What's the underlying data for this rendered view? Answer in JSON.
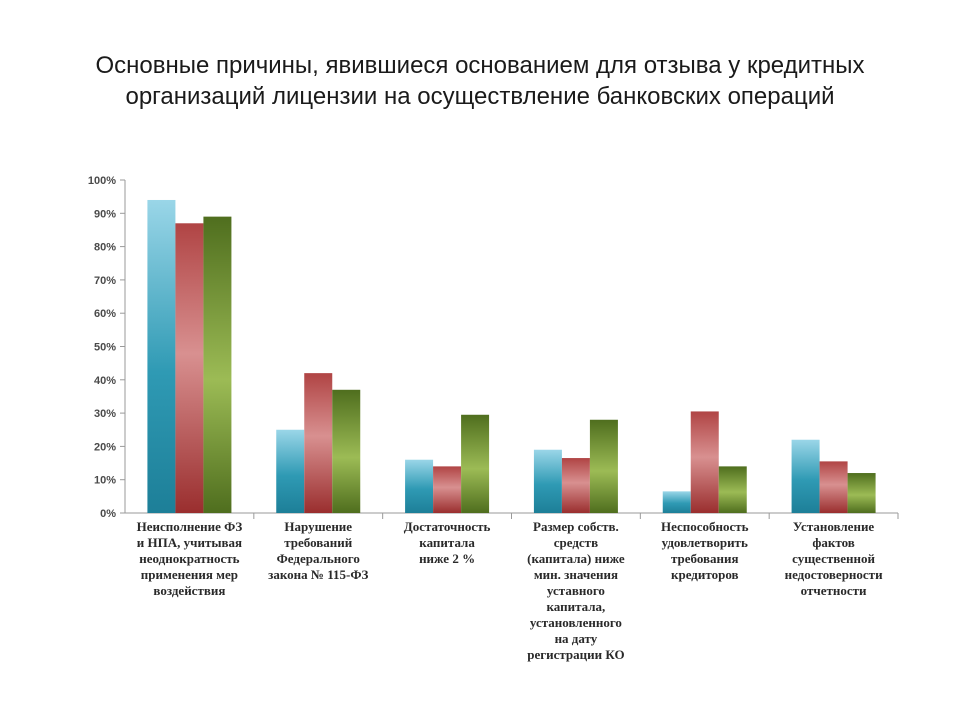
{
  "title": "Основные причины, явившиеся основанием для отзыва у кредитных организаций лицензии на осуществление банковских операций",
  "chart_data": {
    "type": "bar",
    "title": "Основные причины, явившиеся основанием для отзыва у кредитных организаций лицензии на осуществление банковских операций",
    "ylim": [
      0,
      100
    ],
    "yticks": [
      "0%",
      "10%",
      "20%",
      "30%",
      "40%",
      "50%",
      "60%",
      "70%",
      "80%",
      "90%",
      "100%"
    ],
    "grid": false,
    "legend": "none",
    "categories": [
      [
        "Неисполнение ФЗ",
        "и НПА, учитывая",
        "неоднократность",
        "применения мер",
        "воздействия"
      ],
      [
        "Нарушение",
        "требований",
        "Федерального",
        "закона № 115-ФЗ"
      ],
      [
        "Достаточность",
        "капитала",
        "ниже 2 %"
      ],
      [
        "Размер собств.",
        "средств",
        "(капитала) ниже",
        "мин. значения",
        "уставного",
        "капитала,",
        "установленного",
        "на дату",
        "регистрации КО"
      ],
      [
        "Неспособность",
        "удовлетворить",
        "требования",
        "кредиторов"
      ],
      [
        "Установление",
        "фактов",
        "существенной",
        "недостоверности",
        "отчетности"
      ]
    ],
    "series": [
      {
        "values": [
          94,
          25,
          16,
          19,
          6.5,
          22
        ],
        "color": "#2a93ae"
      },
      {
        "values": [
          87,
          42,
          14,
          16.5,
          30.5,
          15.5
        ],
        "color": "#a33a3a"
      },
      {
        "values": [
          89,
          37,
          29.5,
          28,
          14,
          12
        ],
        "color": "#6e8f2e"
      }
    ]
  }
}
